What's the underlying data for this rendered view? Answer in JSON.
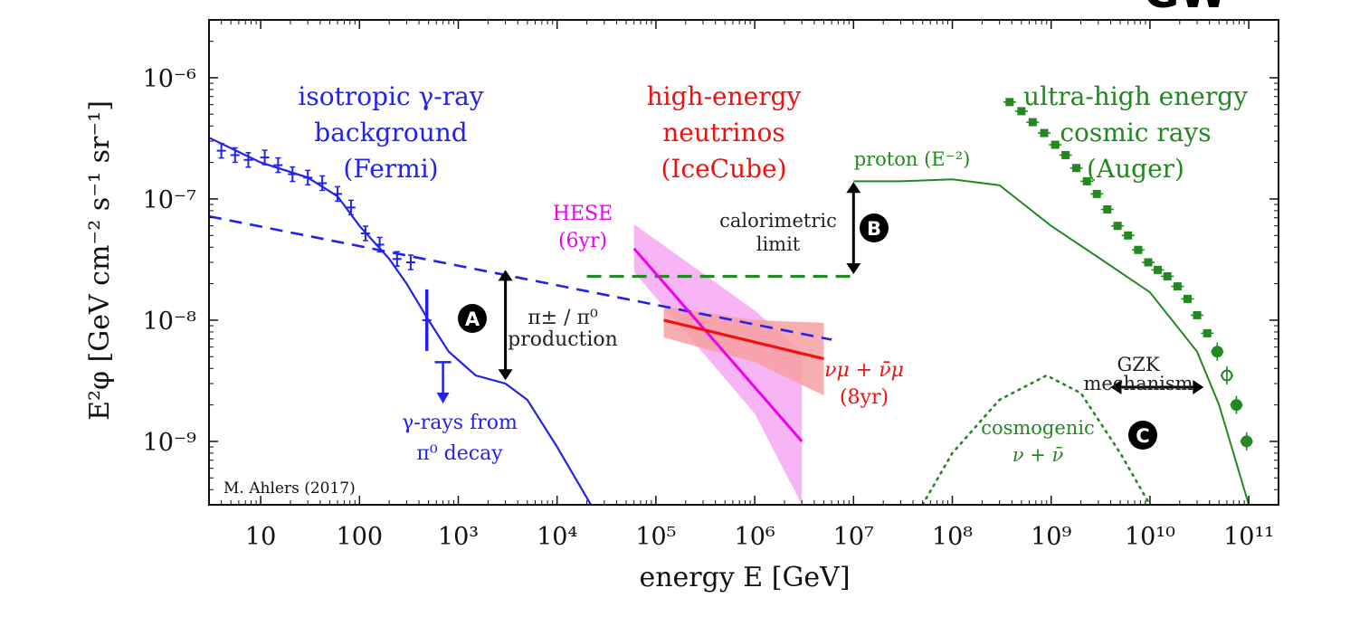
{
  "corner_text": "GW",
  "chart_data": {
    "type": "line",
    "xlabel": "energy E [GeV]",
    "ylabel": "E²φ [GeV cm⁻² s⁻¹ sr⁻¹]",
    "x_scale": "log",
    "y_scale": "log",
    "xlim": [
      3,
      200000000000
    ],
    "ylim": [
      3e-10,
      3e-06
    ],
    "x_ticks": [
      {
        "value": 10,
        "label": "10"
      },
      {
        "value": 100,
        "label": "100"
      },
      {
        "value": 1000,
        "label": "10³"
      },
      {
        "value": 10000,
        "label": "10⁴"
      },
      {
        "value": 100000,
        "label": "10⁵"
      },
      {
        "value": 1000000,
        "label": "10⁶"
      },
      {
        "value": 10000000,
        "label": "10⁷"
      },
      {
        "value": 100000000,
        "label": "10⁸"
      },
      {
        "value": 1000000000,
        "label": "10⁹"
      },
      {
        "value": 10000000000,
        "label": "10¹⁰"
      },
      {
        "value": 100000000000,
        "label": "10¹¹"
      }
    ],
    "y_ticks": [
      {
        "value": 1e-06,
        "label": "10⁻⁶"
      },
      {
        "value": 1e-07,
        "label": "10⁻⁷"
      },
      {
        "value": 1e-08,
        "label": "10⁻⁸"
      },
      {
        "value": 1e-09,
        "label": "10⁻⁹"
      }
    ],
    "colors": {
      "gamma": "#2222ee",
      "neutrino": "#ee1111",
      "hese": "#ee00ee",
      "hese_band": "#f7a8f4",
      "numu_band": "#f6a0a0",
      "uhecr": "#228822"
    },
    "annotations": {
      "gamma_title": [
        "isotropic γ-ray",
        "background",
        "(Fermi)"
      ],
      "neutrino_title": [
        "high-energy",
        "neutrinos",
        "(IceCube)"
      ],
      "uhecr_title": [
        "ultra-high energy",
        "cosmic rays",
        "(Auger)"
      ],
      "hese_label": [
        "HESE",
        "(6yr)"
      ],
      "numu_label": [
        "νμ + ν̄μ",
        "(8yr)"
      ],
      "proton_label": "proton (E⁻²)",
      "calorimetric": [
        "calorimetric",
        "limit"
      ],
      "pion": [
        "π± / π⁰",
        "production"
      ],
      "pi0_decay": [
        "γ-rays from",
        "π⁰ decay"
      ],
      "gzk": [
        "GZK",
        "mechanism"
      ],
      "cosmogenic": [
        "cosmogenic",
        "ν + ν̄"
      ],
      "credit": "M. Ahlers (2017)",
      "marker_a": "A",
      "marker_b": "B",
      "marker_c": "C"
    },
    "series": [
      {
        "key": "fermi_data",
        "kind": "errorbar_points",
        "points": [
          {
            "x": 4,
            "y": 2.5e-07
          },
          {
            "x": 5.5,
            "y": 2.3e-07
          },
          {
            "x": 7.5,
            "y": 2.1e-07
          },
          {
            "x": 11,
            "y": 2.2e-07
          },
          {
            "x": 15,
            "y": 1.9e-07
          },
          {
            "x": 21,
            "y": 1.6e-07
          },
          {
            "x": 30,
            "y": 1.5e-07
          },
          {
            "x": 42,
            "y": 1.35e-07
          },
          {
            "x": 60,
            "y": 1.1e-07
          },
          {
            "x": 82,
            "y": 8.5e-08
          },
          {
            "x": 115,
            "y": 5.2e-08
          },
          {
            "x": 160,
            "y": 4.2e-08
          },
          {
            "x": 240,
            "y": 3.2e-08
          },
          {
            "x": 330,
            "y": 3e-08
          },
          {
            "x": 480,
            "y": 1e-08
          }
        ]
      },
      {
        "key": "fermi_model",
        "kind": "line",
        "points": [
          {
            "x": 3,
            "y": 3.2e-07
          },
          {
            "x": 10,
            "y": 2e-07
          },
          {
            "x": 30,
            "y": 1.5e-07
          },
          {
            "x": 60,
            "y": 1.05e-07
          },
          {
            "x": 100,
            "y": 6e-08
          },
          {
            "x": 200,
            "y": 3.2e-08
          },
          {
            "x": 300,
            "y": 2e-08
          },
          {
            "x": 500,
            "y": 1e-08
          },
          {
            "x": 800,
            "y": 5.5e-09
          },
          {
            "x": 1500,
            "y": 3.5e-09
          },
          {
            "x": 3000,
            "y": 3e-09
          },
          {
            "x": 5000,
            "y": 2.2e-09
          },
          {
            "x": 10000,
            "y": 9e-10
          },
          {
            "x": 22000,
            "y": 3e-10
          }
        ]
      },
      {
        "key": "pion_limit",
        "kind": "dashed_line",
        "points": [
          {
            "x": 3,
            "y": 7.2e-08
          },
          {
            "x": 6000000,
            "y": 6.9e-09
          }
        ]
      },
      {
        "key": "calorimetric_limit",
        "kind": "dashed_line",
        "points": [
          {
            "x": 20000,
            "y": 2.3e-08
          },
          {
            "x": 10000000,
            "y": 2.3e-08
          }
        ]
      },
      {
        "key": "hese_fit",
        "kind": "line_with_band",
        "points": [
          {
            "x": 60000,
            "y": 3.9e-08
          },
          {
            "x": 3000000,
            "y": 1e-09
          }
        ],
        "band_upper": [
          {
            "x": 60000,
            "y": 6.2e-08
          },
          {
            "x": 1000000,
            "y": 1.2e-08
          },
          {
            "x": 3000000,
            "y": 5.5e-09
          }
        ],
        "band_lower": [
          {
            "x": 3000000,
            "y": 3e-10
          },
          {
            "x": 1000000,
            "y": 1.7e-09
          },
          {
            "x": 60000,
            "y": 2.5e-08
          }
        ]
      },
      {
        "key": "numu_fit",
        "kind": "line_with_band",
        "points": [
          {
            "x": 120000,
            "y": 1e-08
          },
          {
            "x": 5000000,
            "y": 4.8e-09
          }
        ],
        "band_upper": [
          {
            "x": 120000,
            "y": 1.3e-08
          },
          {
            "x": 1000000,
            "y": 1e-08
          },
          {
            "x": 5000000,
            "y": 9.5e-09
          }
        ],
        "band_lower": [
          {
            "x": 5000000,
            "y": 2.4e-09
          },
          {
            "x": 1000000,
            "y": 4.5e-09
          },
          {
            "x": 120000,
            "y": 7.2e-09
          }
        ]
      },
      {
        "key": "proton_model",
        "kind": "line",
        "points": [
          {
            "x": 10000000,
            "y": 1.4e-07
          },
          {
            "x": 30000000,
            "y": 1.4e-07
          },
          {
            "x": 100000000,
            "y": 1.45e-07
          },
          {
            "x": 300000000,
            "y": 1.3e-07
          },
          {
            "x": 1000000000,
            "y": 6e-08
          },
          {
            "x": 3000000000,
            "y": 3.3e-08
          },
          {
            "x": 10000000000,
            "y": 1.7e-08
          },
          {
            "x": 30000000000,
            "y": 5.5e-09
          },
          {
            "x": 50000000000,
            "y": 2e-09
          },
          {
            "x": 70000000000,
            "y": 8e-10
          },
          {
            "x": 100000000000,
            "y": 3e-10
          }
        ]
      },
      {
        "key": "auger_data",
        "kind": "square_points",
        "points": [
          {
            "x": 380000000,
            "y": 6.3e-07
          },
          {
            "x": 500000000,
            "y": 5.3e-07
          },
          {
            "x": 650000000,
            "y": 4.3e-07
          },
          {
            "x": 850000000,
            "y": 3.5e-07
          },
          {
            "x": 1100000000,
            "y": 2.8e-07
          },
          {
            "x": 1400000000,
            "y": 2.3e-07
          },
          {
            "x": 1800000000,
            "y": 1.8e-07
          },
          {
            "x": 2300000000,
            "y": 1.4e-07
          },
          {
            "x": 2900000000,
            "y": 1.1e-07
          },
          {
            "x": 3700000000,
            "y": 8.2e-08
          },
          {
            "x": 4700000000,
            "y": 6e-08
          },
          {
            "x": 6000000000,
            "y": 5e-08
          },
          {
            "x": 7600000000,
            "y": 3.8e-08
          },
          {
            "x": 9600000000,
            "y": 3e-08
          },
          {
            "x": 12000000000,
            "y": 2.6e-08
          },
          {
            "x": 15000000000,
            "y": 2.3e-08
          },
          {
            "x": 19000000000,
            "y": 1.9e-08
          },
          {
            "x": 24000000000,
            "y": 1.5e-08
          },
          {
            "x": 30000000000,
            "y": 1.1e-08
          },
          {
            "x": 38000000000,
            "y": 7.8e-09
          },
          {
            "x": 48000000000,
            "y": 5.5e-09
          },
          {
            "x": 60000000000,
            "y": 3.5e-09
          },
          {
            "x": 75000000000,
            "y": 2e-09
          },
          {
            "x": 95000000000,
            "y": 1e-09
          }
        ]
      },
      {
        "key": "cosmogenic_nu",
        "kind": "dotted_line",
        "points": [
          {
            "x": 50000000,
            "y": 3e-10
          },
          {
            "x": 100000000,
            "y": 8e-10
          },
          {
            "x": 300000000,
            "y": 2.2e-09
          },
          {
            "x": 900000000,
            "y": 3.5e-09
          },
          {
            "x": 2000000000,
            "y": 2.5e-09
          },
          {
            "x": 5000000000,
            "y": 8e-10
          },
          {
            "x": 10000000000,
            "y": 3e-10
          }
        ]
      }
    ]
  }
}
